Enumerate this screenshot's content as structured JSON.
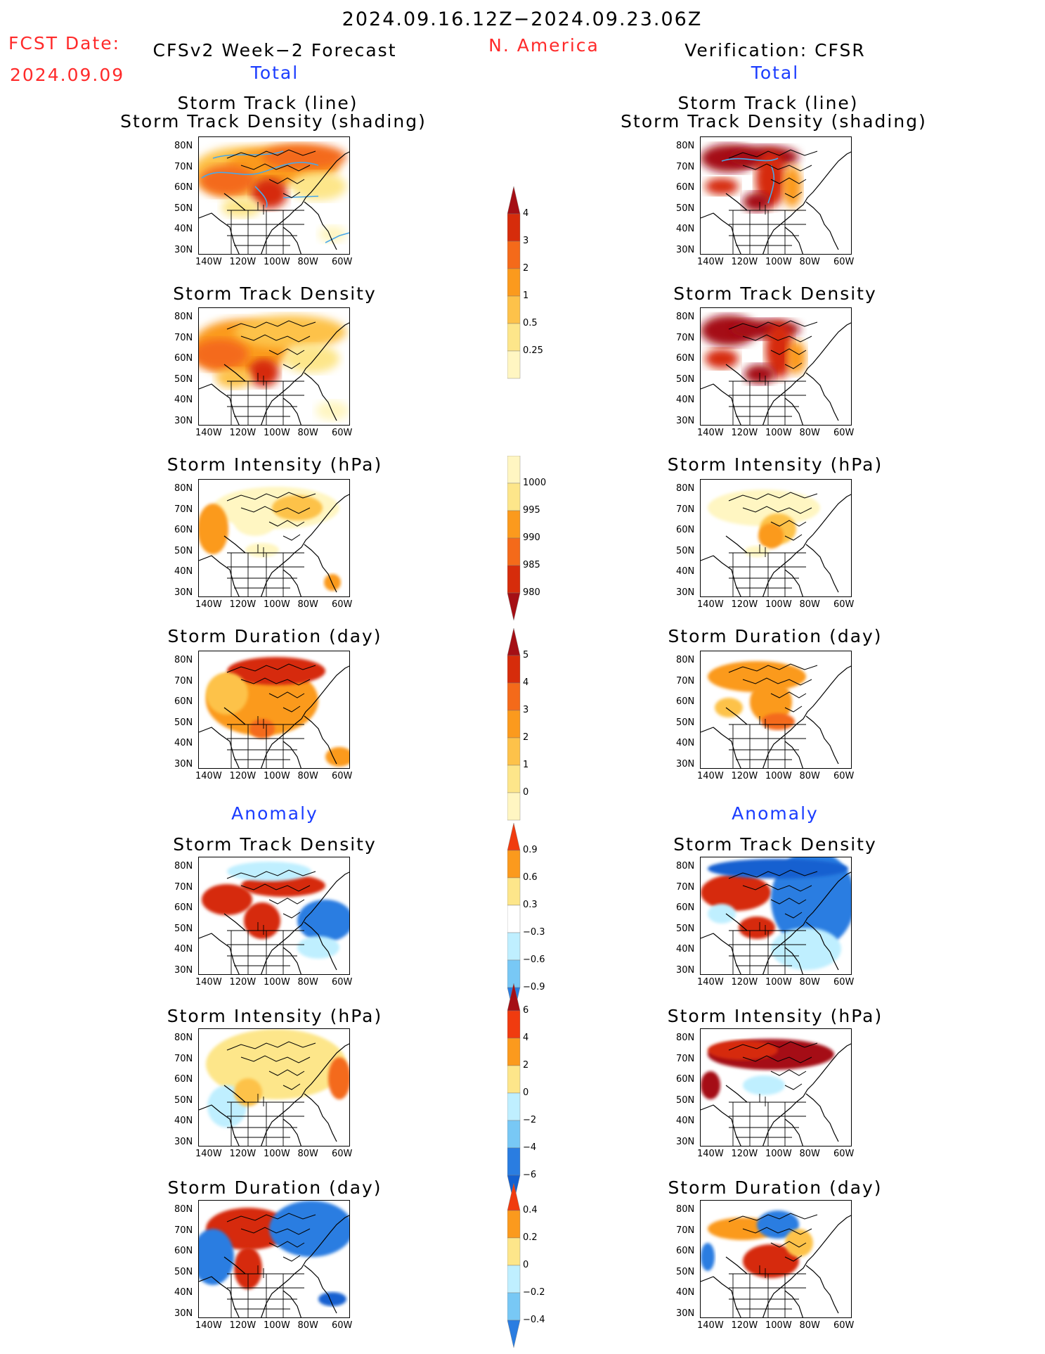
{
  "header": {
    "period": "2024.09.16.12Z−2024.09.23.06Z",
    "fcst_label": "FCST Date:",
    "fcst_date": "2024.09.09",
    "forecast_title": "CFSv2 Week−2 Forecast",
    "region": "N. America",
    "verification_title": "Verification: CFSR",
    "total_left": "Total",
    "total_right": "Total",
    "anomaly_left": "Anomaly",
    "anomaly_right": "Anomaly"
  },
  "panel_titles": {
    "track_line": "Storm Track (line)",
    "track_density_shading": "Storm Track Density (shading)",
    "track_density": "Storm Track Density",
    "intensity": "Storm Intensity (hPa)",
    "duration": "Storm Duration (day)"
  },
  "axes": {
    "lat_labels": [
      "80N",
      "70N",
      "60N",
      "50N",
      "40N",
      "30N"
    ],
    "lon_labels": [
      "140W",
      "120W",
      "100W",
      "80W",
      "60W"
    ]
  },
  "colorbars": [
    {
      "id": "density_total",
      "labels": [
        "4",
        "3",
        "2",
        "1",
        "0.5",
        "0.25"
      ],
      "colors": [
        "#a50f15",
        "#d62c0b",
        "#f46a1a",
        "#fb9a1d",
        "#fdc24a",
        "#fde68a",
        "#fff6c2"
      ]
    },
    {
      "id": "intensity_total",
      "labels": [
        "1000",
        "995",
        "990",
        "985",
        "980"
      ],
      "colors": [
        "#fff6c2",
        "#fde68a",
        "#fb9a1d",
        "#f46a1a",
        "#d62c0b",
        "#a50f15"
      ]
    },
    {
      "id": "duration_total",
      "labels": [
        "5",
        "4",
        "3",
        "2",
        "1",
        "0"
      ],
      "colors": [
        "#a50f15",
        "#d62c0b",
        "#f46a1a",
        "#fb9a1d",
        "#fdc24a",
        "#fde68a",
        "#fff6c2"
      ]
    },
    {
      "id": "density_anom",
      "labels": [
        "0.9",
        "0.6",
        "0.3",
        "−0.3",
        "−0.6",
        "−0.9"
      ],
      "colors": [
        "#f03b0f",
        "#fb9a1d",
        "#fde68a",
        "#ffffff",
        "#bfefff",
        "#78c8f5",
        "#2a7de1"
      ]
    },
    {
      "id": "intensity_anom",
      "labels": [
        "6",
        "4",
        "2",
        "0",
        "−2",
        "−4",
        "−6"
      ],
      "colors": [
        "#a50f15",
        "#f03b0f",
        "#fb9a1d",
        "#fde68a",
        "#bfefff",
        "#78c8f5",
        "#2a7de1",
        "#1460d0"
      ]
    },
    {
      "id": "duration_anom",
      "labels": [
        "0.4",
        "0.2",
        "0",
        "−0.2",
        "−0.4"
      ],
      "colors": [
        "#f03b0f",
        "#fb9a1d",
        "#fde68a",
        "#bfefff",
        "#78c8f5",
        "#2a7de1"
      ]
    }
  ],
  "colors": {
    "deep_red": "#a50f15",
    "red": "#d62c0b",
    "orange_red": "#f46a1a",
    "orange": "#fb9a1d",
    "light_orange": "#fdc24a",
    "yellow": "#fde68a",
    "pale_yellow": "#fff6c2",
    "pale_blue": "#bfefff",
    "light_blue": "#78c8f5",
    "blue": "#2a7de1",
    "deep_blue": "#1460d0",
    "track_line": "#4aa8e8",
    "header_red": "#ff2a2a",
    "header_blue": "#1a3cff"
  }
}
